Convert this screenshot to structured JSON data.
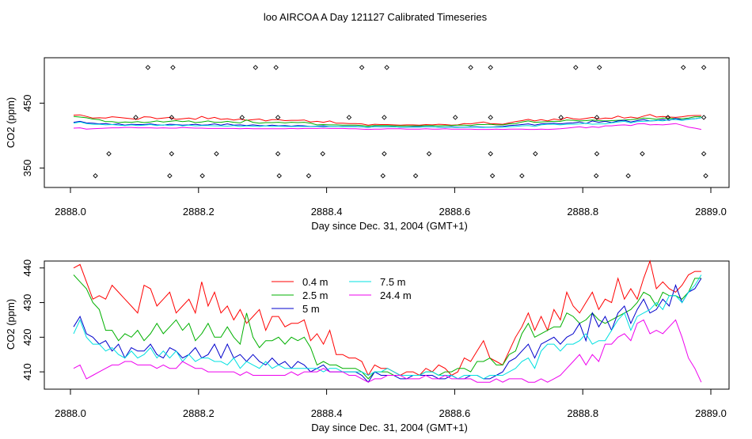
{
  "page_title": "loo AIRCOA A  Day 121127  Calibrated Timeseries",
  "chart_data": [
    {
      "type": "scatter",
      "title": "",
      "xlabel": "Day since Dec. 31, 2004 (GMT+1)",
      "ylabel": "CO2 (ppm)",
      "xlim": [
        2888.0,
        2889.0
      ],
      "ylim": [
        320,
        520
      ],
      "xticks": [
        "2888.0",
        "2888.2",
        "2888.4",
        "2888.6",
        "2888.8",
        "2889.0"
      ],
      "xtick_values": [
        2888.0,
        2888.2,
        2888.4,
        2888.6,
        2888.8,
        2889.0
      ],
      "yticks": [
        "350",
        "450"
      ],
      "ytick_values": [
        350,
        450
      ],
      "line_colors": [
        "#ff0000",
        "#00b000",
        "#0000cc",
        "#00e0e0",
        "#ee00ee"
      ],
      "lines_x": [
        2888.005,
        2888.96,
        2889.0
      ],
      "points": [
        [
          2888.121,
          505
        ],
        [
          2888.16,
          505
        ],
        [
          2888.289,
          505
        ],
        [
          2888.321,
          505
        ],
        [
          2888.455,
          505
        ],
        [
          2888.494,
          505
        ],
        [
          2888.625,
          505
        ],
        [
          2888.656,
          505
        ],
        [
          2888.789,
          505
        ],
        [
          2888.826,
          505
        ],
        [
          2888.957,
          505
        ],
        [
          2888.989,
          505
        ],
        [
          2888.102,
          428
        ],
        [
          2888.158,
          428
        ],
        [
          2888.268,
          428
        ],
        [
          2888.324,
          428
        ],
        [
          2888.435,
          428
        ],
        [
          2888.49,
          428
        ],
        [
          2888.601,
          428
        ],
        [
          2888.656,
          428
        ],
        [
          2888.766,
          428
        ],
        [
          2888.822,
          428
        ],
        [
          2888.933,
          428
        ],
        [
          2888.989,
          428
        ],
        [
          2888.06,
          372
        ],
        [
          2888.158,
          372
        ],
        [
          2888.228,
          372
        ],
        [
          2888.324,
          372
        ],
        [
          2888.394,
          372
        ],
        [
          2888.49,
          372
        ],
        [
          2888.56,
          372
        ],
        [
          2888.656,
          372
        ],
        [
          2888.726,
          372
        ],
        [
          2888.822,
          372
        ],
        [
          2888.893,
          372
        ],
        [
          2888.989,
          372
        ],
        [
          2888.039,
          338
        ],
        [
          2888.155,
          338
        ],
        [
          2888.206,
          338
        ],
        [
          2888.326,
          338
        ],
        [
          2888.372,
          338
        ],
        [
          2888.488,
          338
        ],
        [
          2888.539,
          338
        ],
        [
          2888.659,
          338
        ],
        [
          2888.705,
          338
        ],
        [
          2888.821,
          338
        ],
        [
          2888.871,
          338
        ],
        [
          2888.992,
          338
        ]
      ]
    },
    {
      "type": "line",
      "title": "",
      "xlabel": "Day since Dec. 31, 2004 (GMT+1)",
      "ylabel": "CO2 (ppm)",
      "xlim": [
        2888.0,
        2889.0
      ],
      "ylim": [
        405,
        442
      ],
      "xticks": [
        "2888.0",
        "2888.2",
        "2888.4",
        "2888.6",
        "2888.8",
        "2889.0"
      ],
      "xtick_values": [
        2888.0,
        2888.2,
        2888.4,
        2888.6,
        2888.8,
        2889.0
      ],
      "yticks": [
        "410",
        "420",
        "430",
        "440"
      ],
      "ytick_values": [
        410,
        420,
        430,
        440
      ],
      "legend_position": "top-center",
      "x": [
        2888.005,
        2888.015,
        2888.025,
        2888.035,
        2888.045,
        2888.055,
        2888.065,
        2888.075,
        2888.085,
        2888.095,
        2888.105,
        2888.115,
        2888.125,
        2888.135,
        2888.145,
        2888.155,
        2888.165,
        2888.175,
        2888.185,
        2888.195,
        2888.205,
        2888.215,
        2888.225,
        2888.235,
        2888.245,
        2888.255,
        2888.265,
        2888.275,
        2888.285,
        2888.295,
        2888.305,
        2888.315,
        2888.325,
        2888.335,
        2888.345,
        2888.355,
        2888.365,
        2888.375,
        2888.385,
        2888.395,
        2888.405,
        2888.415,
        2888.425,
        2888.435,
        2888.445,
        2888.455,
        2888.465,
        2888.475,
        2888.485,
        2888.495,
        2888.505,
        2888.515,
        2888.525,
        2888.535,
        2888.545,
        2888.555,
        2888.565,
        2888.575,
        2888.585,
        2888.595,
        2888.605,
        2888.615,
        2888.625,
        2888.635,
        2888.645,
        2888.655,
        2888.665,
        2888.675,
        2888.685,
        2888.695,
        2888.705,
        2888.715,
        2888.725,
        2888.735,
        2888.745,
        2888.755,
        2888.765,
        2888.775,
        2888.785,
        2888.795,
        2888.805,
        2888.815,
        2888.825,
        2888.835,
        2888.845,
        2888.855,
        2888.865,
        2888.875,
        2888.885,
        2888.895,
        2888.905,
        2888.915,
        2888.925,
        2888.935,
        2888.945,
        2888.955,
        2888.965,
        2888.975,
        2888.985
      ],
      "series": [
        {
          "name": "0.4 m",
          "color": "#ff0000",
          "values": [
            440,
            441,
            436,
            431,
            432,
            431,
            435,
            433,
            431,
            429,
            427,
            435,
            434,
            429,
            431,
            433,
            427,
            429,
            431,
            427,
            436,
            429,
            433,
            427,
            429,
            425,
            428,
            424,
            426,
            428,
            422,
            426,
            426,
            423,
            424,
            424,
            425,
            419,
            421,
            418,
            422,
            415,
            415,
            414,
            414,
            413,
            409,
            412,
            411,
            411,
            410,
            409,
            410,
            410,
            409,
            411,
            410,
            412,
            411,
            409,
            410,
            414,
            413,
            416,
            419,
            414,
            413,
            412,
            416,
            420,
            423,
            427,
            422,
            426,
            422,
            428,
            425,
            433,
            429,
            427,
            430,
            433,
            428,
            431,
            430,
            437,
            431,
            434,
            431,
            437,
            442,
            434,
            436,
            434,
            433,
            435,
            438,
            439,
            439
          ]
        },
        {
          "name": "2.5 m",
          "color": "#00b000",
          "values": [
            438,
            436,
            434,
            430,
            428,
            422,
            422,
            419,
            421,
            420,
            422,
            419,
            421,
            424,
            421,
            423,
            425,
            422,
            424,
            419,
            421,
            424,
            420,
            420,
            423,
            420,
            418,
            427,
            420,
            417,
            419,
            419,
            420,
            418,
            420,
            419,
            420,
            417,
            412,
            413,
            412,
            412,
            411,
            411,
            411,
            410,
            408,
            410,
            410,
            410,
            409,
            409,
            409,
            409,
            409,
            410,
            410,
            409,
            410,
            410,
            411,
            411,
            410,
            413,
            413,
            414,
            412,
            412,
            415,
            416,
            421,
            424,
            420,
            421,
            422,
            423,
            423,
            427,
            426,
            424,
            425,
            427,
            425,
            424,
            425,
            426,
            427,
            428,
            430,
            433,
            432,
            429,
            433,
            432,
            432,
            431,
            433,
            437,
            437
          ]
        },
        {
          "name": "5 m",
          "color": "#0000cc",
          "values": [
            423,
            426,
            421,
            420,
            418,
            419,
            416,
            418,
            414,
            417,
            416,
            416,
            418,
            415,
            414,
            417,
            416,
            414,
            415,
            417,
            414,
            415,
            418,
            414,
            418,
            414,
            415,
            413,
            415,
            413,
            412,
            414,
            412,
            413,
            411,
            413,
            412,
            410,
            411,
            412,
            410,
            410,
            410,
            410,
            410,
            409,
            407,
            410,
            409,
            409,
            409,
            408,
            408,
            409,
            409,
            409,
            409,
            408,
            408,
            409,
            408,
            408,
            409,
            409,
            408,
            408,
            409,
            410,
            413,
            414,
            416,
            418,
            414,
            418,
            419,
            420,
            418,
            420,
            421,
            424,
            419,
            427,
            423,
            426,
            422,
            427,
            429,
            424,
            428,
            431,
            427,
            428,
            431,
            429,
            435,
            430,
            433,
            434,
            437
          ]
        },
        {
          "name": "7.5 m",
          "color": "#00e0e0",
          "values": [
            421,
            425,
            420,
            418,
            418,
            416,
            417,
            415,
            414,
            416,
            414,
            415,
            417,
            414,
            416,
            414,
            416,
            413,
            415,
            413,
            414,
            414,
            413,
            413,
            412,
            414,
            411,
            413,
            412,
            411,
            413,
            411,
            412,
            411,
            411,
            411,
            411,
            411,
            411,
            410,
            411,
            411,
            410,
            410,
            410,
            410,
            409,
            410,
            410,
            411,
            410,
            409,
            409,
            409,
            409,
            410,
            410,
            409,
            409,
            409,
            408,
            409,
            409,
            409,
            408,
            409,
            409,
            409,
            410,
            411,
            413,
            414,
            411,
            416,
            418,
            418,
            416,
            418,
            418,
            419,
            421,
            418,
            419,
            419,
            422,
            425,
            427,
            422,
            426,
            427,
            428,
            430,
            428,
            432,
            432,
            430,
            433,
            435,
            438
          ]
        },
        {
          "name": "24.4 m",
          "color": "#ee00ee",
          "values": [
            411,
            412,
            408,
            409,
            410,
            411,
            412,
            412,
            413,
            413,
            412,
            412,
            412,
            411,
            412,
            411,
            411,
            413,
            412,
            411,
            411,
            410,
            410,
            410,
            410,
            410,
            409,
            410,
            409,
            409,
            409,
            409,
            409,
            409,
            410,
            409,
            410,
            410,
            410,
            411,
            410,
            410,
            410,
            409,
            409,
            408,
            407,
            408,
            408,
            409,
            409,
            409,
            408,
            408,
            408,
            409,
            408,
            408,
            409,
            408,
            408,
            408,
            408,
            407,
            407,
            407,
            408,
            407,
            408,
            408,
            408,
            407,
            407,
            408,
            407,
            408,
            409,
            411,
            413,
            415,
            412,
            415,
            413,
            418,
            418,
            420,
            421,
            419,
            424,
            425,
            421,
            422,
            421,
            423,
            425,
            420,
            414,
            411,
            407
          ]
        }
      ]
    }
  ]
}
